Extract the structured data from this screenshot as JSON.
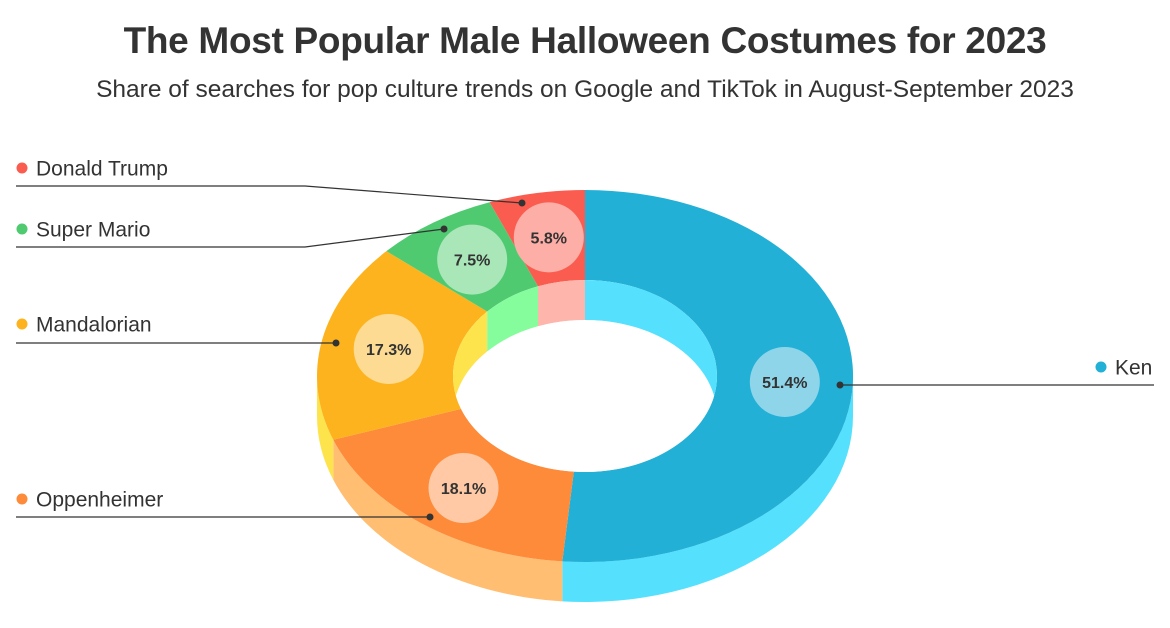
{
  "chart_data": {
    "type": "pie",
    "title": "The Most Popular Male Halloween Costumes for 2023",
    "subtitle": "Share of searches for pop culture trends on Google and TikTok in August-September 2023",
    "legend_position": "left-and-right",
    "slices": [
      {
        "name": "Ken",
        "value": 51.4,
        "label": "51.4%",
        "color": "#22b0d7",
        "side_color": "#55e1fd",
        "bubble_color": "#8fd5ea"
      },
      {
        "name": "Oppenheimer",
        "value": 18.1,
        "label": "18.1%",
        "color": "#fd8b3a",
        "side_color": "#ffbe72",
        "bubble_color": "#fec9a4"
      },
      {
        "name": "Mandalorian",
        "value": 17.3,
        "label": "17.3%",
        "color": "#fdb31e",
        "side_color": "#fee44c",
        "bubble_color": "#fedb93"
      },
      {
        "name": "Super Mario",
        "value": 7.5,
        "label": "7.5%",
        "color": "#4fca71",
        "side_color": "#86fd9c",
        "bubble_color": "#a9e6b8"
      },
      {
        "name": "Donald Trump",
        "value": 5.8,
        "label": "5.8%",
        "color": "#fa5d50",
        "side_color": "#feb5ab",
        "bubble_color": "#fdaea7"
      }
    ]
  }
}
